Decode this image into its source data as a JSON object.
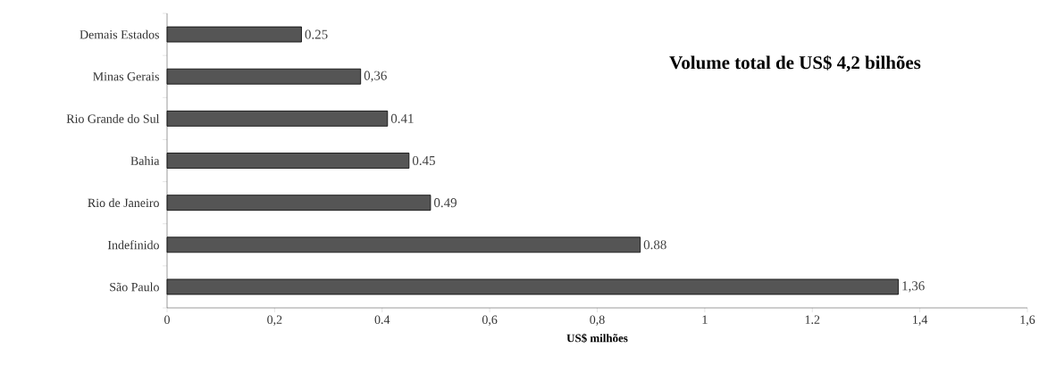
{
  "chart_data": {
    "type": "bar",
    "orientation": "horizontal",
    "categories": [
      "Demais Estados",
      "Minas Gerais",
      "Rio Grande do Sul",
      "Bahia",
      "Rio de Janeiro",
      "Indefinido",
      "São Paulo"
    ],
    "values": [
      0.25,
      0.36,
      0.41,
      0.45,
      0.49,
      0.88,
      1.36
    ],
    "value_labels": [
      "0.25",
      "0,36",
      "0.41",
      "0.45",
      "0.49",
      "0.88",
      "1,36"
    ],
    "color": "#555555",
    "xlabel": "US$ milhões",
    "annotations": [
      "Volume total de US$ 4,2 bilhões"
    ],
    "xlim": [
      0,
      1.6
    ],
    "grid": false,
    "xticks": [
      0,
      {
        "value": 0.2,
        "label": "0,2"
      },
      {
        "value": 0.4,
        "label": "0.4"
      },
      {
        "value": 0.6,
        "label": "0,6"
      },
      {
        "value": 0.8,
        "label": "0,8"
      },
      1,
      {
        "value": 1.2,
        "label": "1.2"
      },
      {
        "value": 1.4,
        "label": "1,4"
      },
      {
        "value": 1.6,
        "label": "1,6"
      }
    ]
  }
}
